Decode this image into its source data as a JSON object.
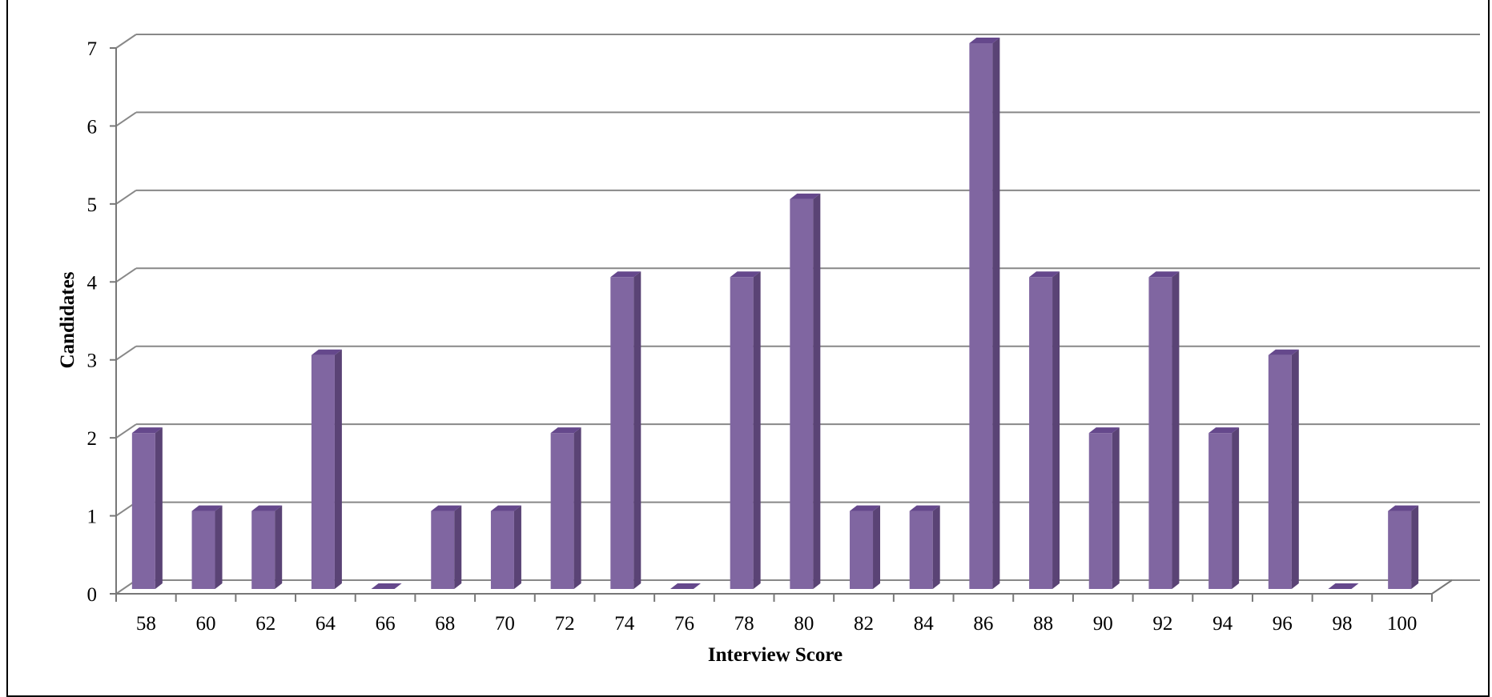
{
  "chart_data": {
    "type": "bar",
    "title": "",
    "xlabel": "Interview Score",
    "ylabel": "Candidates",
    "categories": [
      "58",
      "60",
      "62",
      "64",
      "66",
      "68",
      "70",
      "72",
      "74",
      "76",
      "78",
      "80",
      "82",
      "84",
      "86",
      "88",
      "90",
      "92",
      "94",
      "96",
      "98",
      "100"
    ],
    "values": [
      2,
      1,
      1,
      3,
      0,
      1,
      1,
      2,
      4,
      0,
      4,
      5,
      1,
      1,
      7,
      4,
      2,
      4,
      2,
      3,
      0,
      1
    ],
    "ylim": [
      0,
      7
    ],
    "yticks": [
      "0",
      "1",
      "2",
      "3",
      "4",
      "5",
      "6",
      "7"
    ],
    "grid": true,
    "legend": "none",
    "style": "3d-column"
  },
  "colors": {
    "bar_front": "#8066A1",
    "bar_side": "#5A4375",
    "bar_top": "#65488C",
    "grid": "#888888",
    "axis": "#777777",
    "text": "#000000"
  }
}
